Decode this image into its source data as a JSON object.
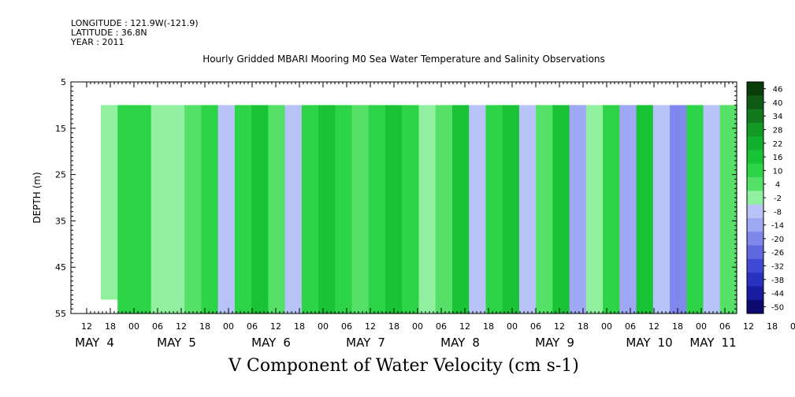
{
  "header": {
    "longitude": "LONGITUDE : 121.9W(-121.9)",
    "latitude": "LATITUDE : 36.8N",
    "year": "YEAR : 2011"
  },
  "chart_data": {
    "type": "heatmap",
    "title": "Hourly Gridded MBARI Mooring M0 Sea Water Temperature and Salinity Observations",
    "xlabel": "V Component of Water Velocity (cm s-1)",
    "ylabel": "DEPTH (m)",
    "y_range": [
      5,
      55
    ],
    "y_inverted": true,
    "y_ticks": [
      5,
      15,
      25,
      35,
      45,
      55
    ],
    "data_depth_range": [
      10,
      55
    ],
    "x_hour_ticks": [
      "12",
      "18",
      "00",
      "06",
      "12",
      "18",
      "00",
      "06",
      "12",
      "18",
      "00",
      "06",
      "12",
      "18",
      "00",
      "06",
      "12",
      "18",
      "00",
      "06",
      "12",
      "18",
      "00",
      "06",
      "12",
      "18",
      "00",
      "06",
      "12",
      "18",
      "00",
      "06"
    ],
    "x_day_labels": [
      {
        "month": "MAY",
        "day": "4"
      },
      {
        "month": "MAY",
        "day": "5"
      },
      {
        "month": "MAY",
        "day": "6"
      },
      {
        "month": "MAY",
        "day": "7"
      },
      {
        "month": "MAY",
        "day": "8"
      },
      {
        "month": "MAY",
        "day": "9"
      },
      {
        "month": "MAY",
        "day": "10"
      },
      {
        "month": "MAY",
        "day": "11"
      }
    ],
    "colorbar_levels": [
      "46",
      "40",
      "34",
      "28",
      "22",
      "16",
      "10",
      "4",
      "-2",
      "-8",
      "-14",
      "-20",
      "-26",
      "-32",
      "-38",
      "-44",
      "-50"
    ],
    "colorbar_colors": [
      "#0a3d0a",
      "#0f5a14",
      "#127a1c",
      "#129a24",
      "#12b02c",
      "#18c436",
      "#2ed448",
      "#55e068",
      "#90f0a0",
      "#b8c4f8",
      "#9ea8f4",
      "#8088ec",
      "#6068e0",
      "#4048d4",
      "#2a30c0",
      "#181ca0",
      "#0a0a70"
    ],
    "columns": [
      {
        "top": 10,
        "bottom": 52,
        "v": 2
      },
      {
        "top": 10,
        "bottom": 55,
        "v": 14
      },
      {
        "top": 10,
        "bottom": 55,
        "v": 10
      },
      {
        "top": 10,
        "bottom": 55,
        "v": 3
      },
      {
        "top": 10,
        "bottom": 55,
        "v": -2
      },
      {
        "top": 10,
        "bottom": 55,
        "v": 9
      },
      {
        "top": 10,
        "bottom": 55,
        "v": 12
      },
      {
        "top": 10,
        "bottom": 55,
        "v": -4
      },
      {
        "top": 10,
        "bottom": 55,
        "v": 11
      },
      {
        "top": 10,
        "bottom": 55,
        "v": 16
      },
      {
        "top": 10,
        "bottom": 55,
        "v": 8
      },
      {
        "top": 10,
        "bottom": 55,
        "v": -3
      },
      {
        "top": 10,
        "bottom": 55,
        "v": 13
      },
      {
        "top": 10,
        "bottom": 55,
        "v": 18
      },
      {
        "top": 10,
        "bottom": 55,
        "v": 10
      },
      {
        "top": 10,
        "bottom": 55,
        "v": 6
      },
      {
        "top": 10,
        "bottom": 55,
        "v": 15
      },
      {
        "top": 10,
        "bottom": 55,
        "v": 20
      },
      {
        "top": 10,
        "bottom": 55,
        "v": 12
      },
      {
        "top": 10,
        "bottom": 55,
        "v": -1
      },
      {
        "top": 10,
        "bottom": 55,
        "v": 9
      },
      {
        "top": 10,
        "bottom": 55,
        "v": 17
      },
      {
        "top": 10,
        "bottom": 55,
        "v": -6
      },
      {
        "top": 10,
        "bottom": 55,
        "v": 14
      },
      {
        "top": 10,
        "bottom": 55,
        "v": 19
      },
      {
        "top": 10,
        "bottom": 55,
        "v": -8
      },
      {
        "top": 10,
        "bottom": 55,
        "v": 6
      },
      {
        "top": 10,
        "bottom": 55,
        "v": 16
      },
      {
        "top": 10,
        "bottom": 55,
        "v": -10
      },
      {
        "top": 10,
        "bottom": 55,
        "v": 3
      },
      {
        "top": 10,
        "bottom": 55,
        "v": 12
      },
      {
        "top": 10,
        "bottom": 55,
        "v": -12
      },
      {
        "top": 10,
        "bottom": 55,
        "v": 18
      },
      {
        "top": 10,
        "bottom": 55,
        "v": -3
      },
      {
        "top": 10,
        "bottom": 55,
        "v": -20
      },
      {
        "top": 10,
        "bottom": 55,
        "v": 14
      },
      {
        "top": 10,
        "bottom": 55,
        "v": -5
      },
      {
        "top": 10,
        "bottom": 55,
        "v": 8
      }
    ]
  }
}
